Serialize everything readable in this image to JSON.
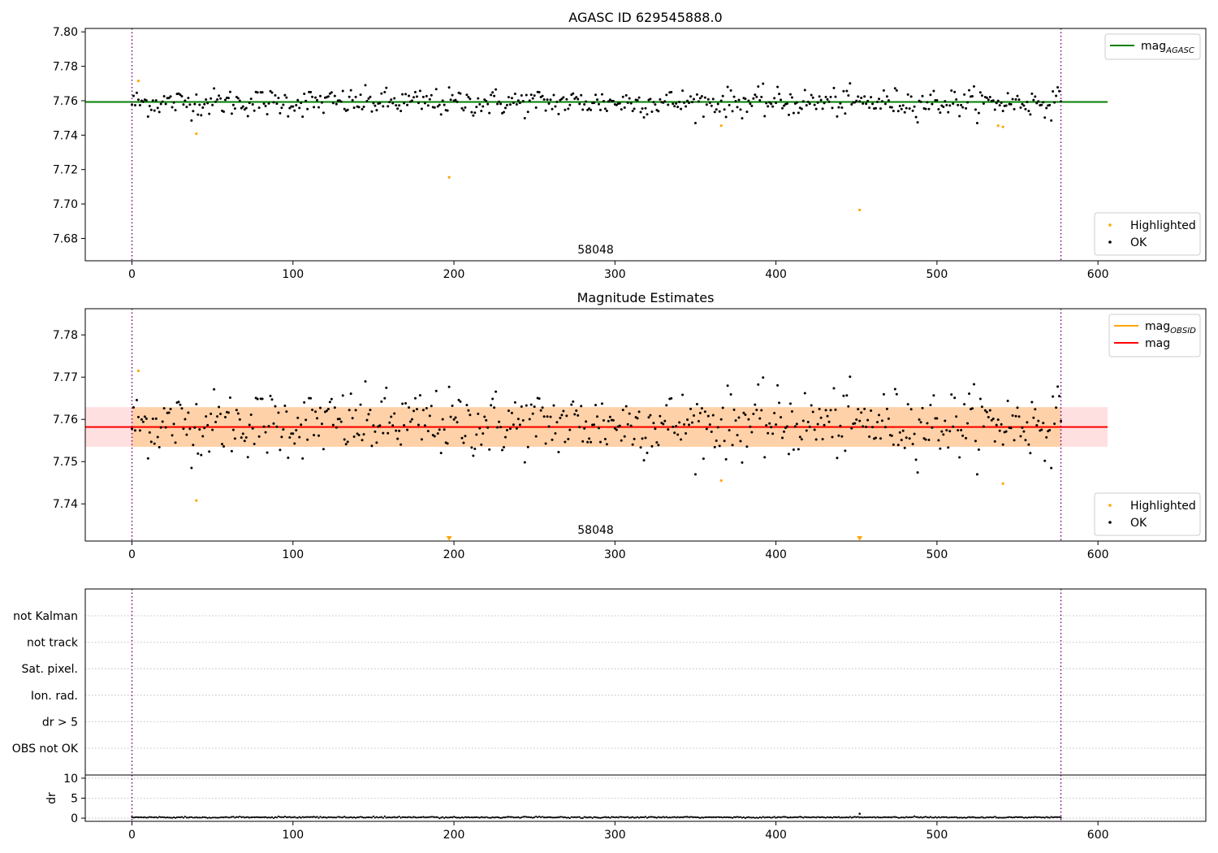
{
  "charts": [
    {
      "id": "agasc",
      "title": "AGASC ID 629545888.0",
      "xlim": [
        -29,
        667
      ],
      "ylim": [
        7.667,
        7.802
      ],
      "xticks": [
        0,
        100,
        200,
        300,
        400,
        500,
        600
      ],
      "yticks": [
        7.68,
        7.7,
        7.72,
        7.74,
        7.76,
        7.78,
        7.8
      ],
      "ytick_labels": [
        "7.68",
        "7.70",
        "7.72",
        "7.74",
        "7.76",
        "7.78",
        "7.80"
      ],
      "obs_label": "58048",
      "obs_boundaries": [
        0,
        577
      ],
      "lines": [
        {
          "name": "mag",
          "sub": "AGASC",
          "y": 7.7593,
          "x": [
            -29,
            606
          ],
          "color": "#008000"
        }
      ],
      "legend_top": [
        {
          "name": "mag",
          "sub": "AGASC",
          "color": "#008000"
        }
      ],
      "legend_bottom": [
        {
          "name": "Highlighted",
          "color": "#ffa500"
        },
        {
          "name": "OK",
          "color": "#000000"
        }
      ],
      "highlighted": [
        [
          4,
          7.7715
        ],
        [
          40,
          7.7408
        ],
        [
          197,
          7.7155
        ],
        [
          366,
          7.7455
        ],
        [
          452,
          7.6965
        ],
        [
          538,
          7.7455
        ],
        [
          541,
          7.7448
        ]
      ]
    },
    {
      "id": "estimates",
      "title": "Magnitude Estimates",
      "xlim": [
        -29,
        667
      ],
      "ylim": [
        7.7312,
        7.7862
      ],
      "xticks": [
        0,
        100,
        200,
        300,
        400,
        500,
        600
      ],
      "yticks": [
        7.74,
        7.75,
        7.76,
        7.77,
        7.78
      ],
      "ytick_labels": [
        "7.74",
        "7.75",
        "7.76",
        "7.77",
        "7.78"
      ],
      "obs_label": "58048",
      "obs_boundaries": [
        0,
        577
      ],
      "lines": [
        {
          "name": "mag",
          "sub": "OBSID",
          "y": 7.7582,
          "x": [
            0,
            577
          ],
          "color": "#ffa500"
        },
        {
          "name": "mag",
          "sub": "",
          "y": 7.7582,
          "x": [
            -29,
            606
          ],
          "color": "#ff0000"
        }
      ],
      "bands": [
        {
          "y0": 7.7535,
          "y1": 7.7629,
          "x": [
            -29,
            606
          ],
          "color": "#ff0000",
          "alpha": 0.12
        },
        {
          "y0": 7.7535,
          "y1": 7.7629,
          "x": [
            0,
            577
          ],
          "color": "#ffa500",
          "alpha": 0.25
        }
      ],
      "legend_top": [
        {
          "name": "mag",
          "sub": "OBSID",
          "color": "#ffa500"
        },
        {
          "name": "mag",
          "sub": "",
          "color": "#ff0000"
        }
      ],
      "legend_bottom": [
        {
          "name": "Highlighted",
          "color": "#ffa500"
        },
        {
          "name": "OK",
          "color": "#000000"
        }
      ],
      "highlighted": [
        [
          4,
          7.7715
        ],
        [
          40,
          7.7408
        ],
        [
          366,
          7.7455
        ],
        [
          541,
          7.7448
        ]
      ],
      "offscale_markers": [
        197,
        452
      ]
    },
    {
      "id": "flags",
      "xlim": [
        -29,
        667
      ],
      "flag_labels": [
        "not Kalman",
        "not track",
        "Sat. pixel.",
        "Ion. rad.",
        "dr > 5",
        "OBS not OK"
      ],
      "obs_boundaries": [
        0,
        577
      ]
    },
    {
      "id": "dr",
      "ylabel": "dr",
      "xlim": [
        -29,
        667
      ],
      "ylim": [
        -0.8,
        10.8
      ],
      "yticks": [
        0,
        5,
        10
      ],
      "ytick_labels": [
        "0",
        "5",
        "10"
      ],
      "xticks": [
        0,
        100,
        200,
        300,
        400,
        500,
        600
      ],
      "obs_boundaries": [
        0,
        577
      ],
      "n_points": 578,
      "base": 0.2,
      "spike": [
        452,
        1.1
      ]
    }
  ],
  "chart_data": [
    {
      "type": "scatter",
      "title": "AGASC ID 629545888.0",
      "series": [
        {
          "name": "OK",
          "mean": 7.7593,
          "scatter": 0.0042,
          "n": 578
        },
        {
          "name": "Highlighted",
          "n": 7
        }
      ],
      "ylim": [
        7.667,
        7.802
      ],
      "xlim": [
        -29,
        667
      ]
    },
    {
      "type": "scatter",
      "title": "Magnitude Estimates",
      "series": [
        {
          "name": "OK",
          "n": 578
        },
        {
          "name": "Highlighted",
          "n": 6
        }
      ],
      "ylim": [
        7.7312,
        7.7862
      ],
      "xlim": [
        -29,
        667
      ]
    },
    {
      "type": "scatter",
      "ylabel": "dr",
      "ylim": [
        -0.8,
        10.8
      ],
      "xlim": [
        -29,
        667
      ]
    }
  ],
  "colors": {
    "ok": "#000000",
    "highlighted": "#ffa500",
    "boundary": "#800080",
    "grid": "#b0b0b0",
    "frame": "#000000"
  }
}
